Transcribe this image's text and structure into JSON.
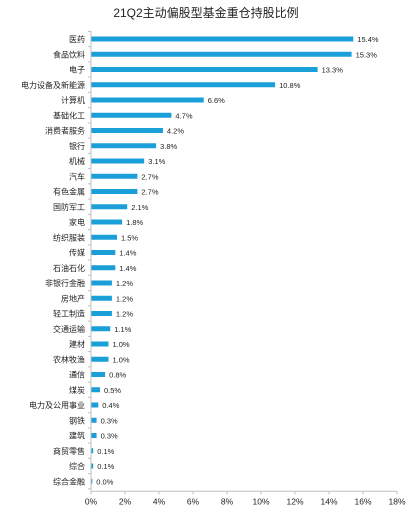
{
  "chart_data": {
    "type": "bar",
    "orientation": "horizontal",
    "title": "21Q2主动偏股型基金重仓持股比例",
    "categories": [
      "医药",
      "食品饮料",
      "电子",
      "电力设备及新能源",
      "计算机",
      "基础化工",
      "消费者服务",
      "银行",
      "机械",
      "汽车",
      "有色金属",
      "国防军工",
      "家电",
      "纺织服装",
      "传媒",
      "石油石化",
      "非银行金融",
      "房地产",
      "轻工制造",
      "交通运输",
      "建材",
      "农林牧渔",
      "通信",
      "煤炭",
      "电力及公用事业",
      "钢铁",
      "建筑",
      "商贸零售",
      "综合",
      "综合金融"
    ],
    "values": [
      15.4,
      15.3,
      13.3,
      10.8,
      6.6,
      4.7,
      4.2,
      3.8,
      3.1,
      2.7,
      2.7,
      2.1,
      1.8,
      1.5,
      1.4,
      1.4,
      1.2,
      1.2,
      1.2,
      1.1,
      1.0,
      1.0,
      0.8,
      0.5,
      0.4,
      0.3,
      0.3,
      0.1,
      0.1,
      0.0
    ],
    "value_labels": [
      "15.4%",
      "15.3%",
      "13.3%",
      "10.8%",
      "6.6%",
      "4.7%",
      "4.2%",
      "3.8%",
      "3.1%",
      "2.7%",
      "2.7%",
      "2.1%",
      "1.8%",
      "1.5%",
      "1.4%",
      "1.4%",
      "1.2%",
      "1.2%",
      "1.2%",
      "1.1%",
      "1.0%",
      "1.0%",
      "0.8%",
      "0.5%",
      "0.4%",
      "0.3%",
      "0.3%",
      "0.1%",
      "0.1%",
      "0.0%"
    ],
    "xticks": [
      "0%",
      "2%",
      "4%",
      "6%",
      "8%",
      "10%",
      "12%",
      "14%",
      "16%",
      "18%"
    ],
    "xlim": [
      0,
      18
    ],
    "grid": false,
    "bar_color": "#1a9fd8",
    "axis_color": "#bfbfbf"
  }
}
